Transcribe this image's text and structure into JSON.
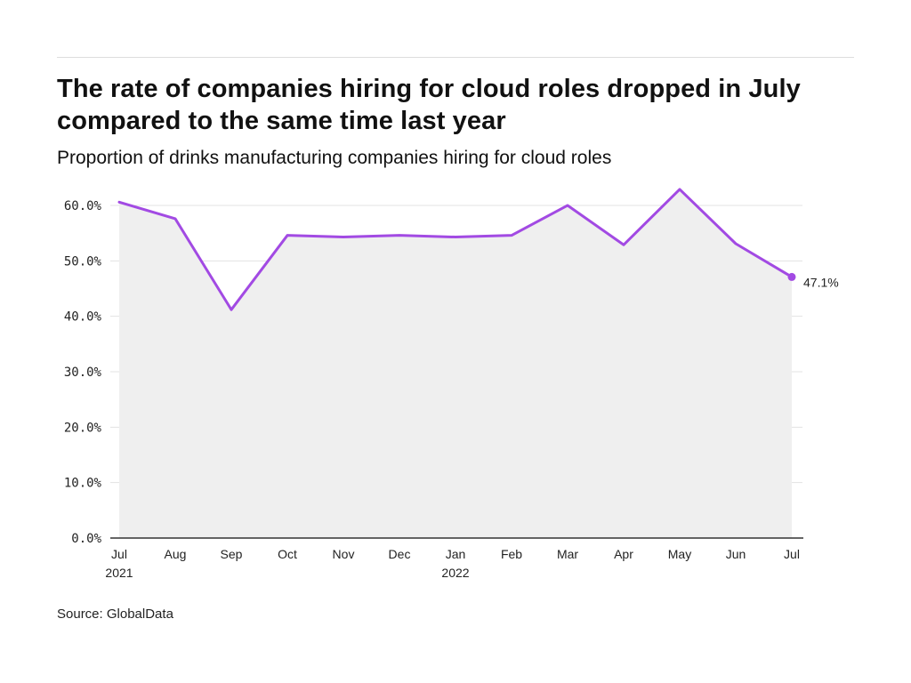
{
  "header": {
    "title": "The rate of companies hiring for cloud roles dropped in July compared to the same time last year",
    "subtitle": "Proportion of drinks manufacturing companies hiring for cloud roles"
  },
  "footer": {
    "source": "Source: GlobalData"
  },
  "colors": {
    "line": "#a24ae3",
    "area": "#efefef",
    "grid": "#e3e3e3",
    "axis": "#333333"
  },
  "chart_data": {
    "type": "area",
    "title": "The rate of companies hiring for cloud roles dropped in July compared to the same time last year",
    "subtitle": "Proportion of drinks manufacturing companies hiring for cloud roles",
    "categories": [
      "Jul 2021",
      "Aug",
      "Sep",
      "Oct",
      "Nov",
      "Dec",
      "Jan 2022",
      "Feb",
      "Mar",
      "Apr",
      "May",
      "Jun",
      "Jul"
    ],
    "x_tick_labels": [
      [
        "Jul",
        "2021"
      ],
      [
        "Aug"
      ],
      [
        "Sep"
      ],
      [
        "Oct"
      ],
      [
        "Nov"
      ],
      [
        "Dec"
      ],
      [
        "Jan",
        "2022"
      ],
      [
        "Feb"
      ],
      [
        "Mar"
      ],
      [
        "Apr"
      ],
      [
        "May"
      ],
      [
        "Jun"
      ],
      [
        "Jul"
      ]
    ],
    "series": [
      {
        "values": [
          60.6,
          57.6,
          41.2,
          54.6,
          54.3,
          54.6,
          54.3,
          54.6,
          60.0,
          52.9,
          62.9,
          53.1,
          47.1
        ]
      }
    ],
    "ylim": [
      0,
      60
    ],
    "y_ticks": [
      0,
      10,
      20,
      30,
      40,
      50,
      60
    ],
    "y_tick_labels": [
      "0.0%",
      "10.0%",
      "20.0%",
      "30.0%",
      "40.0%",
      "50.0%",
      "60.0%"
    ],
    "end_label": "47.1%",
    "grid": true,
    "legend": "none",
    "xlabel": "",
    "ylabel": ""
  }
}
